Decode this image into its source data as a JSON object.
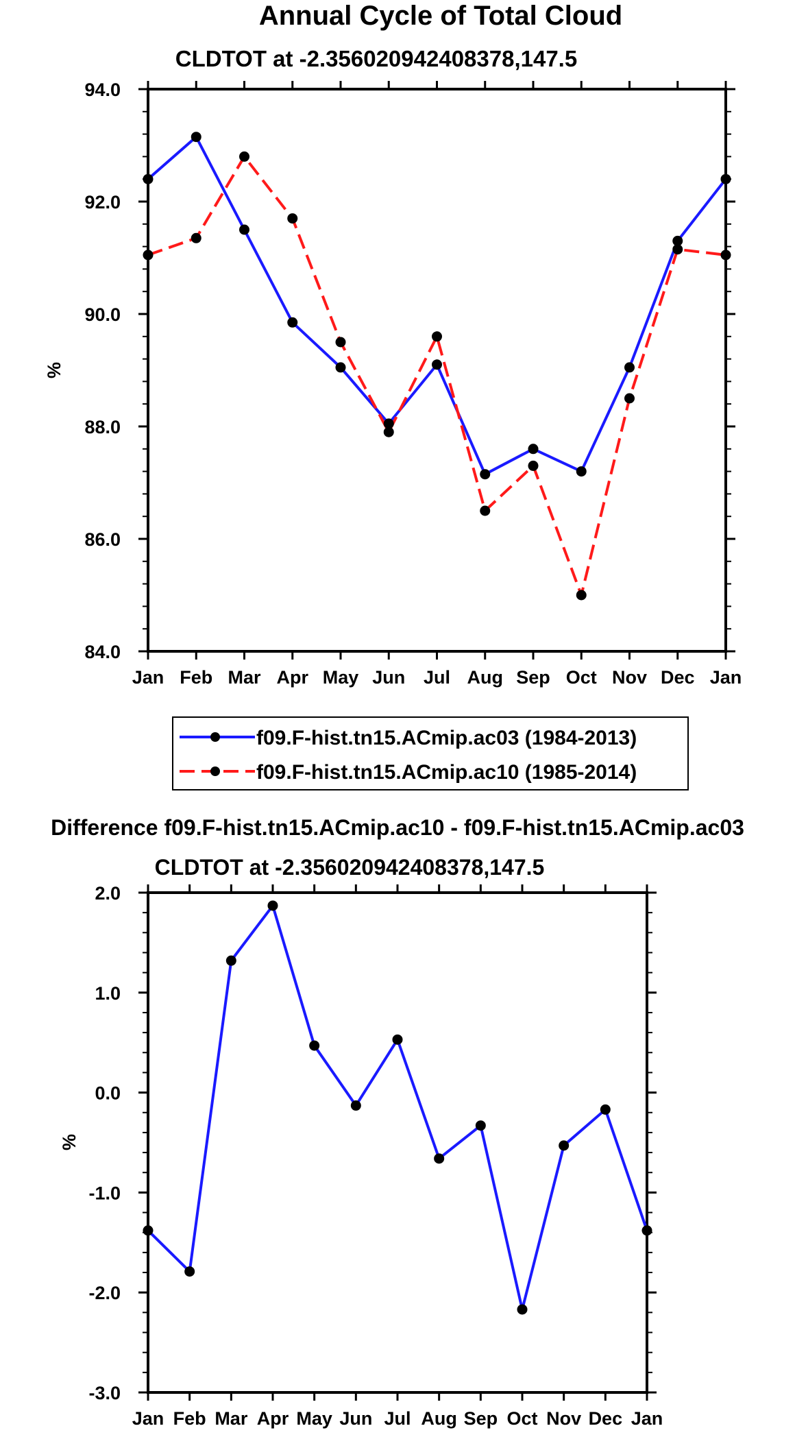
{
  "chart_data": [
    {
      "type": "line",
      "title": "Annual Cycle of Total Cloud",
      "subtitle": "CLDTOT at -2.356020942408378,147.5",
      "ylabel": "%",
      "xlabel": "",
      "ylim": [
        84.0,
        94.0
      ],
      "yticks": [
        "84.0",
        "86.0",
        "88.0",
        "90.0",
        "92.0",
        "94.0"
      ],
      "categories": [
        "Jan",
        "Feb",
        "Mar",
        "Apr",
        "May",
        "Jun",
        "Jul",
        "Aug",
        "Sep",
        "Oct",
        "Nov",
        "Dec",
        "Jan"
      ],
      "series": [
        {
          "name": "f09.F-hist.tn15.ACmip.ac03 (1984-2013)",
          "color": "#1a1aff",
          "style": "solid",
          "values": [
            92.4,
            93.15,
            91.5,
            89.85,
            89.05,
            88.05,
            89.1,
            87.15,
            87.6,
            87.2,
            89.05,
            91.3,
            92.4
          ]
        },
        {
          "name": "f09.F-hist.tn15.ACmip.ac10 (1985-2014)",
          "color": "#ff1a1a",
          "style": "dashed",
          "values": [
            91.05,
            91.35,
            92.8,
            91.7,
            89.5,
            87.9,
            89.6,
            86.5,
            87.3,
            85.0,
            88.5,
            91.15,
            91.05
          ]
        }
      ],
      "legend_position": "bottom"
    },
    {
      "type": "line",
      "title": "Difference f09.F-hist.tn15.ACmip.ac10 - f09.F-hist.tn15.ACmip.ac03",
      "subtitle": "CLDTOT at -2.356020942408378,147.5",
      "ylabel": "%",
      "xlabel": "",
      "ylim": [
        -3.0,
        2.0
      ],
      "yticks": [
        "-3.0",
        "-2.0",
        "-1.0",
        "0.0",
        "1.0",
        "2.0"
      ],
      "categories": [
        "Jan",
        "Feb",
        "Mar",
        "Apr",
        "May",
        "Jun",
        "Jul",
        "Aug",
        "Sep",
        "Oct",
        "Nov",
        "Dec",
        "Jan"
      ],
      "series": [
        {
          "name": "difference",
          "color": "#1a1aff",
          "style": "solid",
          "values": [
            -1.38,
            -1.79,
            1.32,
            1.87,
            0.47,
            -0.13,
            0.53,
            -0.66,
            -0.33,
            -2.17,
            -0.53,
            -0.17,
            -1.38
          ]
        }
      ]
    }
  ]
}
